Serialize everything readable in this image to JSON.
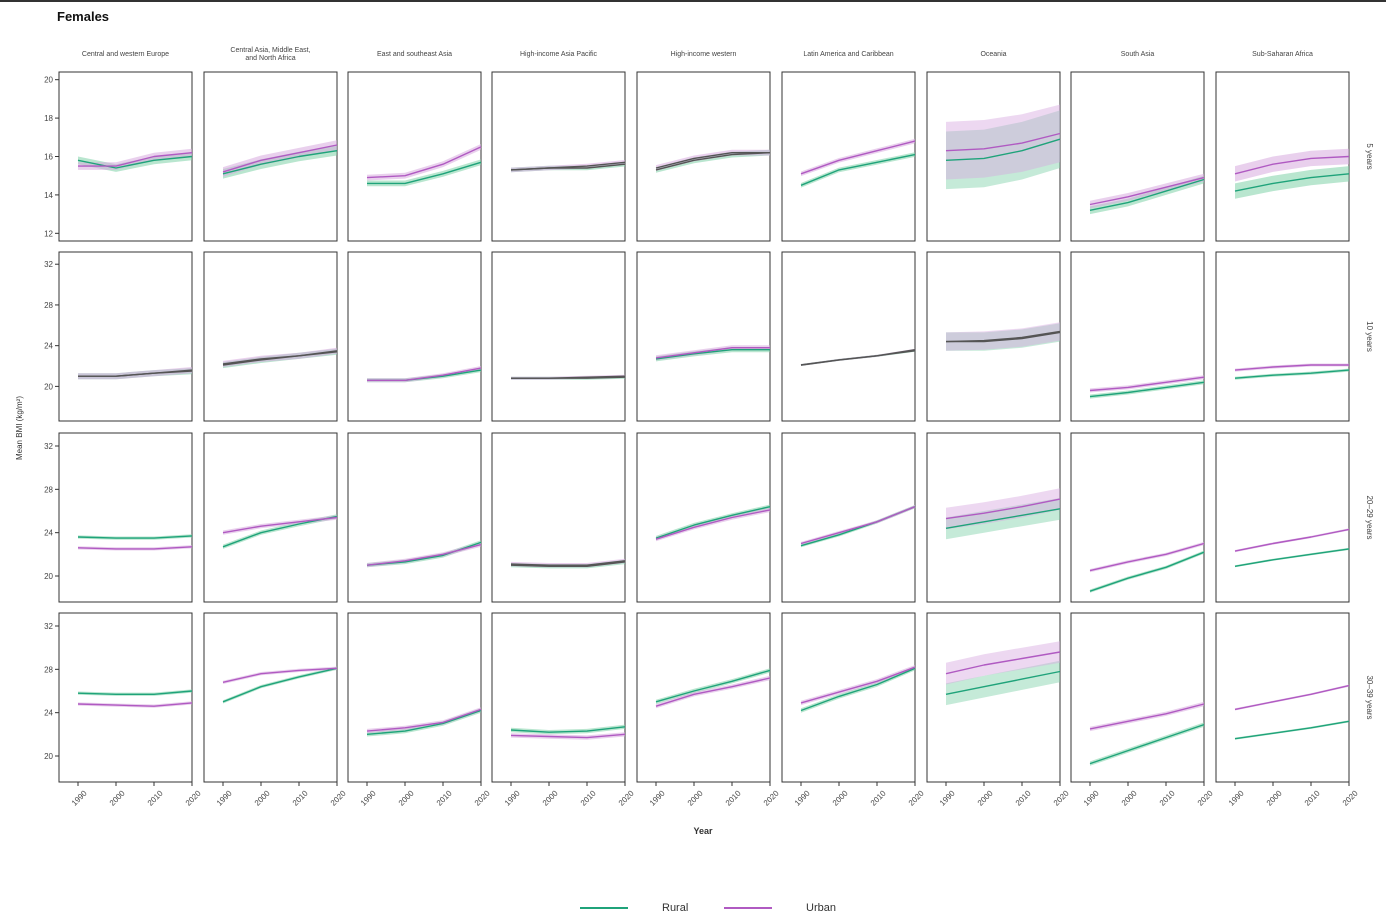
{
  "title": "Females",
  "colors": {
    "rural": "#1fa37a",
    "urban": "#b05ac2",
    "overlap": "#555555",
    "band_rural": "#7fd1a8",
    "band_urban": "#d7a9df"
  },
  "chart_data": {
    "type": "line",
    "xlabel": "Year",
    "ylabel": "Mean BMI (kg/m²)",
    "x_ticks": [
      "1990",
      "2000",
      "2010",
      "2020"
    ],
    "xlim": [
      1985,
      2020
    ],
    "series_names": [
      "Rural",
      "Urban"
    ],
    "regions": [
      "Central and western Europe",
      "Central Asia, Middle East, and North Africa",
      "East and southeast Asia",
      "High-income Asia Pacific",
      "High-income western",
      "Latin America and Caribbean",
      "Oceania",
      "South Asia",
      "Sub-Saharan Africa"
    ],
    "age_groups": [
      {
        "label": "5 years",
        "ylim": [
          11.6,
          20.4
        ],
        "y_ticks": [
          "12",
          "14",
          "16",
          "18",
          "20"
        ],
        "panels": [
          {
            "rural": [
              15.8,
              15.4,
              15.8,
              16.0
            ],
            "urban": [
              15.5,
              15.5,
              16.0,
              16.2
            ],
            "band": 0.2
          },
          {
            "rural": [
              15.1,
              15.6,
              16.0,
              16.3
            ],
            "urban": [
              15.2,
              15.8,
              16.2,
              16.6
            ],
            "band": 0.25
          },
          {
            "rural": [
              14.6,
              14.6,
              15.1,
              15.7
            ],
            "urban": [
              14.9,
              15.0,
              15.6,
              16.5
            ],
            "band": 0.15
          },
          {
            "rural": [
              15.3,
              15.4,
              15.4,
              15.6
            ],
            "urban": [
              15.3,
              15.4,
              15.5,
              15.7
            ],
            "band": 0.12
          },
          {
            "rural": [
              15.3,
              15.8,
              16.1,
              16.2
            ],
            "urban": [
              15.4,
              15.9,
              16.2,
              16.2
            ],
            "band": 0.15
          },
          {
            "rural": [
              14.5,
              15.3,
              15.7,
              16.1
            ],
            "urban": [
              15.1,
              15.8,
              16.3,
              16.8
            ],
            "band": 0.12
          },
          {
            "rural": [
              15.8,
              15.9,
              16.3,
              16.9
            ],
            "urban": [
              16.3,
              16.4,
              16.7,
              17.2
            ],
            "band": 1.5
          },
          {
            "rural": [
              13.2,
              13.6,
              14.2,
              14.8
            ],
            "urban": [
              13.5,
              13.9,
              14.4,
              14.9
            ],
            "band": 0.2
          },
          {
            "rural": [
              14.2,
              14.6,
              14.9,
              15.1
            ],
            "urban": [
              15.1,
              15.6,
              15.9,
              16.0
            ],
            "band": 0.4
          }
        ]
      },
      {
        "label": "10 years",
        "ylim": [
          16.6,
          33.2
        ],
        "y_ticks": [
          "20",
          "24",
          "28",
          "32"
        ],
        "panels": [
          {
            "rural": [
              21.0,
              21.0,
              21.3,
              21.5
            ],
            "urban": [
              21.0,
              21.0,
              21.3,
              21.6
            ],
            "band": 0.3
          },
          {
            "rural": [
              22.1,
              22.6,
              23.0,
              23.4
            ],
            "urban": [
              22.2,
              22.7,
              23.0,
              23.5
            ],
            "band": 0.3
          },
          {
            "rural": [
              20.6,
              20.6,
              21.0,
              21.6
            ],
            "urban": [
              20.6,
              20.6,
              21.1,
              21.8
            ],
            "band": 0.2
          },
          {
            "rural": [
              20.8,
              20.8,
              20.8,
              20.9
            ],
            "urban": [
              20.8,
              20.8,
              20.9,
              21.0
            ],
            "band": 0.15
          },
          {
            "rural": [
              22.7,
              23.2,
              23.6,
              23.6
            ],
            "urban": [
              22.8,
              23.3,
              23.8,
              23.8
            ],
            "band": 0.25
          },
          {
            "rural": [
              22.1,
              22.6,
              23.0,
              23.5
            ],
            "urban": [
              22.1,
              22.6,
              23.0,
              23.6
            ],
            "band": 0.1
          },
          {
            "rural": [
              24.4,
              24.4,
              24.7,
              25.3
            ],
            "urban": [
              24.4,
              24.5,
              24.8,
              25.4
            ],
            "band": 0.9
          },
          {
            "rural": [
              19.0,
              19.4,
              19.9,
              20.4
            ],
            "urban": [
              19.6,
              19.9,
              20.4,
              20.9
            ],
            "band": 0.2
          },
          {
            "rural": [
              20.8,
              21.1,
              21.3,
              21.6
            ],
            "urban": [
              21.6,
              21.9,
              22.1,
              22.1
            ],
            "band": 0.15
          }
        ]
      },
      {
        "label": "20–29 years",
        "ylim": [
          17.6,
          33.2
        ],
        "y_ticks": [
          "20",
          "24",
          "28",
          "32"
        ],
        "panels": [
          {
            "rural": [
              23.6,
              23.5,
              23.5,
              23.7
            ],
            "urban": [
              22.6,
              22.5,
              22.5,
              22.7
            ],
            "band": 0.15
          },
          {
            "rural": [
              22.7,
              24.0,
              24.8,
              25.5
            ],
            "urban": [
              24.0,
              24.6,
              25.0,
              25.4
            ],
            "band": 0.2
          },
          {
            "rural": [
              21.0,
              21.3,
              21.9,
              23.1
            ],
            "urban": [
              21.0,
              21.4,
              22.0,
              22.9
            ],
            "band": 0.2
          },
          {
            "rural": [
              21.0,
              20.9,
              20.9,
              21.3
            ],
            "urban": [
              21.1,
              21.0,
              21.0,
              21.4
            ],
            "band": 0.2
          },
          {
            "rural": [
              23.5,
              24.7,
              25.6,
              26.4
            ],
            "urban": [
              23.4,
              24.5,
              25.4,
              26.1
            ],
            "band": 0.2
          },
          {
            "rural": [
              22.8,
              23.8,
              25.0,
              26.4
            ],
            "urban": [
              23.0,
              24.0,
              25.0,
              26.4
            ],
            "band": 0.15
          },
          {
            "rural": [
              24.4,
              25.0,
              25.6,
              26.2
            ],
            "urban": [
              25.3,
              25.8,
              26.4,
              27.1
            ],
            "band": 1.0
          },
          {
            "rural": [
              18.6,
              19.8,
              20.8,
              22.2
            ],
            "urban": [
              20.5,
              21.3,
              22.0,
              23.0
            ],
            "band": 0.15
          },
          {
            "rural": [
              20.9,
              21.5,
              22.0,
              22.5
            ],
            "urban": [
              22.3,
              23.0,
              23.6,
              24.3
            ],
            "band": 0.1
          }
        ]
      },
      {
        "label": "30–39 years",
        "ylim": [
          17.6,
          33.2
        ],
        "y_ticks": [
          "20",
          "24",
          "28",
          "32"
        ],
        "panels": [
          {
            "rural": [
              25.8,
              25.7,
              25.7,
              26.0
            ],
            "urban": [
              24.8,
              24.7,
              24.6,
              24.9
            ],
            "band": 0.15
          },
          {
            "rural": [
              25.0,
              26.4,
              27.3,
              28.1
            ],
            "urban": [
              26.8,
              27.6,
              27.9,
              28.1
            ],
            "band": 0.15
          },
          {
            "rural": [
              22.0,
              22.3,
              23.0,
              24.2
            ],
            "urban": [
              22.3,
              22.6,
              23.1,
              24.3
            ],
            "band": 0.2
          },
          {
            "rural": [
              22.4,
              22.2,
              22.3,
              22.7
            ],
            "urban": [
              21.9,
              21.8,
              21.7,
              22.0
            ],
            "band": 0.2
          },
          {
            "rural": [
              25.0,
              26.0,
              26.9,
              27.9
            ],
            "urban": [
              24.6,
              25.7,
              26.4,
              27.2
            ],
            "band": 0.2
          },
          {
            "rural": [
              24.2,
              25.5,
              26.6,
              28.1
            ],
            "urban": [
              24.9,
              25.9,
              26.9,
              28.2
            ],
            "band": 0.2
          },
          {
            "rural": [
              25.7,
              26.4,
              27.1,
              27.8
            ],
            "urban": [
              27.6,
              28.4,
              29.0,
              29.6
            ],
            "band": 1.0
          },
          {
            "rural": [
              19.3,
              20.5,
              21.7,
              22.9
            ],
            "urban": [
              22.5,
              23.2,
              23.9,
              24.8
            ],
            "band": 0.2
          },
          {
            "rural": [
              21.6,
              22.1,
              22.6,
              23.2
            ],
            "urban": [
              24.3,
              25.0,
              25.7,
              26.5
            ],
            "band": 0.1
          }
        ]
      }
    ]
  },
  "legend": {
    "rural_label": "Rural",
    "urban_label": "Urban"
  }
}
